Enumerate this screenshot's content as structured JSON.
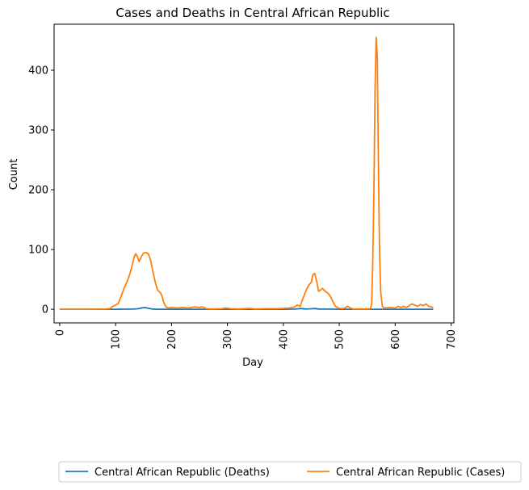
{
  "chart_data": {
    "type": "line",
    "title": "Cases and Deaths in Central African Republic",
    "xlabel": "Day",
    "ylabel": "Count",
    "xlim": [
      -10,
      705
    ],
    "ylim": [
      -22.8,
      477
    ],
    "x_ticks": [
      0,
      100,
      200,
      300,
      400,
      500,
      600,
      700
    ],
    "y_ticks": [
      0,
      100,
      200,
      300,
      400
    ],
    "x_tick_rotation": 90,
    "grid": false,
    "legend_position": "bottom-center, outside plot",
    "series": [
      {
        "name": "Central African Republic (Deaths)",
        "color": "#1f77b4",
        "points": [
          [
            0,
            0
          ],
          [
            50,
            0
          ],
          [
            100,
            0
          ],
          [
            130,
            0.3
          ],
          [
            140,
            0.8
          ],
          [
            148,
            2.5
          ],
          [
            153,
            2.8
          ],
          [
            158,
            1.8
          ],
          [
            165,
            0.5
          ],
          [
            175,
            0
          ],
          [
            400,
            0
          ],
          [
            420,
            0.3
          ],
          [
            432,
            1.2
          ],
          [
            440,
            0.4
          ],
          [
            450,
            0.8
          ],
          [
            456,
            1.2
          ],
          [
            463,
            0.5
          ],
          [
            480,
            0.3
          ],
          [
            500,
            0
          ],
          [
            668,
            0
          ]
        ]
      },
      {
        "name": "Central African Republic (Cases)",
        "color": "#ff7f0e",
        "points": [
          [
            0,
            0
          ],
          [
            40,
            0
          ],
          [
            80,
            0.3
          ],
          [
            90,
            1
          ],
          [
            95,
            5
          ],
          [
            100,
            7
          ],
          [
            105,
            10
          ],
          [
            110,
            22
          ],
          [
            115,
            35
          ],
          [
            120,
            45
          ],
          [
            125,
            58
          ],
          [
            130,
            75
          ],
          [
            133,
            87
          ],
          [
            136,
            93
          ],
          [
            139,
            88
          ],
          [
            142,
            80
          ],
          [
            146,
            88
          ],
          [
            150,
            94
          ],
          [
            155,
            95
          ],
          [
            159,
            92
          ],
          [
            163,
            80
          ],
          [
            167,
            62
          ],
          [
            171,
            45
          ],
          [
            175,
            32
          ],
          [
            180,
            28
          ],
          [
            183,
            22
          ],
          [
            186,
            12
          ],
          [
            190,
            4
          ],
          [
            195,
            2
          ],
          [
            200,
            3
          ],
          [
            210,
            2
          ],
          [
            220,
            3
          ],
          [
            230,
            2
          ],
          [
            240,
            4
          ],
          [
            250,
            3
          ],
          [
            255,
            4
          ],
          [
            262,
            1
          ],
          [
            270,
            0.5
          ],
          [
            290,
            1
          ],
          [
            297,
            2
          ],
          [
            305,
            1
          ],
          [
            320,
            0.5
          ],
          [
            340,
            1.5
          ],
          [
            350,
            0.5
          ],
          [
            370,
            1
          ],
          [
            390,
            1
          ],
          [
            410,
            2
          ],
          [
            420,
            4
          ],
          [
            425,
            7
          ],
          [
            430,
            5
          ],
          [
            435,
            18
          ],
          [
            440,
            30
          ],
          [
            445,
            40
          ],
          [
            450,
            45
          ],
          [
            453,
            58
          ],
          [
            456,
            60
          ],
          [
            460,
            45
          ],
          [
            463,
            30
          ],
          [
            466,
            32
          ],
          [
            470,
            35
          ],
          [
            475,
            30
          ],
          [
            480,
            27
          ],
          [
            485,
            20
          ],
          [
            490,
            10
          ],
          [
            493,
            5
          ],
          [
            498,
            2
          ],
          [
            505,
            1
          ],
          [
            510,
            2
          ],
          [
            515,
            5
          ],
          [
            520,
            2
          ],
          [
            525,
            0.5
          ],
          [
            550,
            0.5
          ],
          [
            556,
            1
          ],
          [
            558,
            10
          ],
          [
            560,
            80
          ],
          [
            562,
            200
          ],
          [
            564,
            370
          ],
          [
            566,
            455
          ],
          [
            568,
            420
          ],
          [
            570,
            250
          ],
          [
            572,
            100
          ],
          [
            574,
            30
          ],
          [
            577,
            5
          ],
          [
            580,
            2
          ],
          [
            590,
            3
          ],
          [
            600,
            2
          ],
          [
            605,
            5
          ],
          [
            610,
            3
          ],
          [
            615,
            5
          ],
          [
            620,
            3
          ],
          [
            625,
            6
          ],
          [
            630,
            9
          ],
          [
            640,
            5
          ],
          [
            645,
            8
          ],
          [
            650,
            6
          ],
          [
            655,
            9
          ],
          [
            660,
            5
          ],
          [
            668,
            3
          ]
        ]
      }
    ]
  }
}
